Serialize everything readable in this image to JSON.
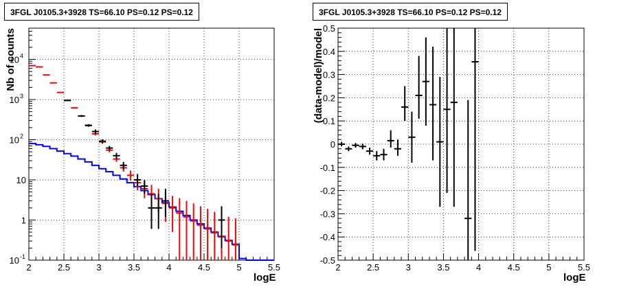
{
  "chart_data": [
    {
      "type": "histogram",
      "title": "3FGL J0105.3+3928 TS=66.10 PS=0.12 PS=0.12",
      "xlabel": "logE",
      "ylabel": "Nb of counts",
      "xlim": [
        2,
        5.5
      ],
      "ylim": [
        0.1,
        60000
      ],
      "yscale": "log",
      "grid": true,
      "x_ticks": [
        "2",
        "2.5",
        "3",
        "3.5",
        "4",
        "4.5",
        "5",
        "5.5"
      ],
      "y_ticks": [
        "10^{-1}",
        "1",
        "10",
        "10^{2}",
        "10^{3}",
        "10^{4}"
      ],
      "series": [
        {
          "color": "#0000ff",
          "style": "step",
          "bin_edges": [
            2.0,
            2.1,
            2.2,
            2.3,
            2.4,
            2.5,
            2.6,
            2.7,
            2.8,
            2.9,
            3.0,
            3.1,
            3.2,
            3.3,
            3.4,
            3.5,
            3.6,
            3.7,
            3.8,
            3.9,
            4.0,
            4.1,
            4.2,
            4.3,
            4.4,
            4.5,
            4.6,
            4.7,
            4.8,
            4.9,
            5.0,
            5.1,
            5.2,
            5.3,
            5.4,
            5.5
          ],
          "values": [
            80,
            75,
            68,
            60,
            52,
            45,
            39,
            33,
            28,
            23,
            19,
            16,
            13,
            10.5,
            8.5,
            6.8,
            5.4,
            4.3,
            3.4,
            2.7,
            2.1,
            1.65,
            1.3,
            1.0,
            0.8,
            0.63,
            0.5,
            0.39,
            0.31,
            0.25,
            0.11,
            0.1,
            0.1,
            0.1,
            0.1
          ]
        },
        {
          "color": "#ff0000",
          "style": "errorbar",
          "points": [
            {
              "x": 2.05,
              "y": 7000,
              "lo": 6900,
              "hi": 7100
            },
            {
              "x": 2.15,
              "y": 6500,
              "lo": 6400,
              "hi": 6600
            },
            {
              "x": 2.25,
              "y": 4100,
              "lo": 4000,
              "hi": 4200
            },
            {
              "x": 2.35,
              "y": 2600,
              "lo": 2550,
              "hi": 2650
            },
            {
              "x": 2.45,
              "y": 1500,
              "lo": 1460,
              "hi": 1540
            },
            {
              "x": 2.55,
              "y": 950,
              "lo": 920,
              "hi": 980
            },
            {
              "x": 2.65,
              "y": 620,
              "lo": 595,
              "hi": 645
            },
            {
              "x": 2.75,
              "y": 390,
              "lo": 370,
              "hi": 410
            },
            {
              "x": 2.85,
              "y": 230,
              "lo": 215,
              "hi": 245
            },
            {
              "x": 2.95,
              "y": 140,
              "lo": 128,
              "hi": 152
            },
            {
              "x": 3.05,
              "y": 88,
              "lo": 79,
              "hi": 97
            },
            {
              "x": 3.15,
              "y": 55,
              "lo": 48,
              "hi": 62
            },
            {
              "x": 3.25,
              "y": 33,
              "lo": 28,
              "hi": 39
            },
            {
              "x": 3.35,
              "y": 20,
              "lo": 16,
              "hi": 25
            },
            {
              "x": 3.45,
              "y": 13,
              "lo": 9.5,
              "hi": 17
            },
            {
              "x": 3.55,
              "y": 8.5,
              "lo": 5.5,
              "hi": 12
            },
            {
              "x": 3.65,
              "y": 6,
              "lo": 3.5,
              "hi": 9
            },
            {
              "x": 3.75,
              "y": 4.5,
              "lo": 2.2,
              "hi": 7.5
            },
            {
              "x": 3.85,
              "y": 3.4,
              "lo": 1.5,
              "hi": 6
            },
            {
              "x": 3.95,
              "y": 2.6,
              "lo": 0.9,
              "hi": 5
            },
            {
              "x": 4.05,
              "y": 2.0,
              "lo": 0.5,
              "hi": 4
            },
            {
              "x": 4.15,
              "y": 1.5,
              "lo": 0.1,
              "hi": 3.5
            },
            {
              "x": 4.25,
              "y": 1.2,
              "lo": 0.1,
              "hi": 3
            },
            {
              "x": 4.35,
              "y": 0.95,
              "lo": 0.1,
              "hi": 2.6
            },
            {
              "x": 4.45,
              "y": 0.75,
              "lo": 0.1,
              "hi": 2.2
            },
            {
              "x": 4.55,
              "y": 0.6,
              "lo": 0.1,
              "hi": 1.9
            },
            {
              "x": 4.65,
              "y": 0.48,
              "lo": 0.1,
              "hi": 1.6
            },
            {
              "x": 4.75,
              "y": 0.38,
              "lo": 0.1,
              "hi": 1.4
            },
            {
              "x": 4.85,
              "y": 0.3,
              "lo": 0.1,
              "hi": 1.2
            },
            {
              "x": 4.95,
              "y": 0.24,
              "lo": 0.1,
              "hi": 1.1
            }
          ]
        },
        {
          "color": "#000000",
          "style": "errorbar",
          "points": [
            {
              "x": 2.55,
              "y": 950,
              "lo": 920,
              "hi": 980
            },
            {
              "x": 2.75,
              "y": 390,
              "lo": 370,
              "hi": 410
            },
            {
              "x": 2.85,
              "y": 225,
              "lo": 210,
              "hi": 240
            },
            {
              "x": 2.95,
              "y": 160,
              "lo": 140,
              "hi": 180
            },
            {
              "x": 3.05,
              "y": 92,
              "lo": 82,
              "hi": 102
            },
            {
              "x": 3.15,
              "y": 62,
              "lo": 54,
              "hi": 70
            },
            {
              "x": 3.25,
              "y": 40,
              "lo": 33,
              "hi": 47
            },
            {
              "x": 3.35,
              "y": 23,
              "lo": 18,
              "hi": 28
            },
            {
              "x": 3.55,
              "y": 10,
              "lo": 7,
              "hi": 14
            },
            {
              "x": 3.65,
              "y": 7,
              "lo": 4.5,
              "hi": 10
            },
            {
              "x": 3.75,
              "y": 2,
              "lo": 0.6,
              "hi": 4.5
            },
            {
              "x": 3.85,
              "y": 2,
              "lo": 0.6,
              "hi": 4.5
            },
            {
              "x": 3.95,
              "y": 3,
              "lo": 1.2,
              "hi": 6
            },
            {
              "x": 4.75,
              "y": 1,
              "lo": 0.2,
              "hi": 2.2
            }
          ]
        }
      ]
    },
    {
      "type": "scatter",
      "title": "3FGL J0105.3+3928 TS=66.10 PS=0.12 PS=0.12",
      "xlabel": "logE",
      "ylabel": "(data-model)/model",
      "xlim": [
        2,
        5.5
      ],
      "ylim": [
        -0.5,
        0.5
      ],
      "grid": true,
      "x_ticks": [
        "2",
        "2.5",
        "3",
        "3.5",
        "4",
        "4.5",
        "5",
        "5.5"
      ],
      "y_ticks": [
        "-0.5",
        "-0.4",
        "-0.3",
        "-0.2",
        "-0.1",
        "0",
        "0.1",
        "0.2",
        "0.3",
        "0.4",
        "0.5"
      ],
      "series": [
        {
          "color": "#000000",
          "style": "errorbar",
          "points": [
            {
              "x": 2.05,
              "y": 0.0,
              "lo": -0.01,
              "hi": 0.01
            },
            {
              "x": 2.15,
              "y": -0.02,
              "lo": -0.03,
              "hi": -0.01
            },
            {
              "x": 2.25,
              "y": -0.005,
              "lo": -0.015,
              "hi": 0.005
            },
            {
              "x": 2.35,
              "y": -0.01,
              "lo": -0.022,
              "hi": 0.002
            },
            {
              "x": 2.45,
              "y": -0.03,
              "lo": -0.045,
              "hi": -0.015
            },
            {
              "x": 2.55,
              "y": -0.05,
              "lo": -0.07,
              "hi": -0.03
            },
            {
              "x": 2.65,
              "y": -0.045,
              "lo": -0.07,
              "hi": -0.02
            },
            {
              "x": 2.75,
              "y": 0.015,
              "lo": -0.015,
              "hi": 0.06
            },
            {
              "x": 2.85,
              "y": -0.02,
              "lo": -0.05,
              "hi": 0.02
            },
            {
              "x": 2.95,
              "y": 0.16,
              "lo": 0.1,
              "hi": 0.25
            },
            {
              "x": 3.05,
              "y": 0.03,
              "lo": -0.08,
              "hi": 0.14
            },
            {
              "x": 3.15,
              "y": 0.21,
              "lo": 0.11,
              "hi": 0.38
            },
            {
              "x": 3.25,
              "y": 0.27,
              "lo": 0.08,
              "hi": 0.46
            },
            {
              "x": 3.35,
              "y": 0.17,
              "lo": -0.07,
              "hi": 0.42
            },
            {
              "x": 3.45,
              "y": 0.01,
              "lo": -0.27,
              "hi": 0.29
            },
            {
              "x": 3.55,
              "y": 0.15,
              "lo": -0.21,
              "hi": 0.5
            },
            {
              "x": 3.65,
              "y": 0.18,
              "lo": -0.27,
              "hi": 0.5
            },
            {
              "x": 3.85,
              "y": -0.32,
              "lo": -0.5,
              "hi": 0.19
            },
            {
              "x": 3.95,
              "y": 0.355,
              "lo": -0.46,
              "hi": 0.5
            }
          ]
        }
      ]
    }
  ]
}
